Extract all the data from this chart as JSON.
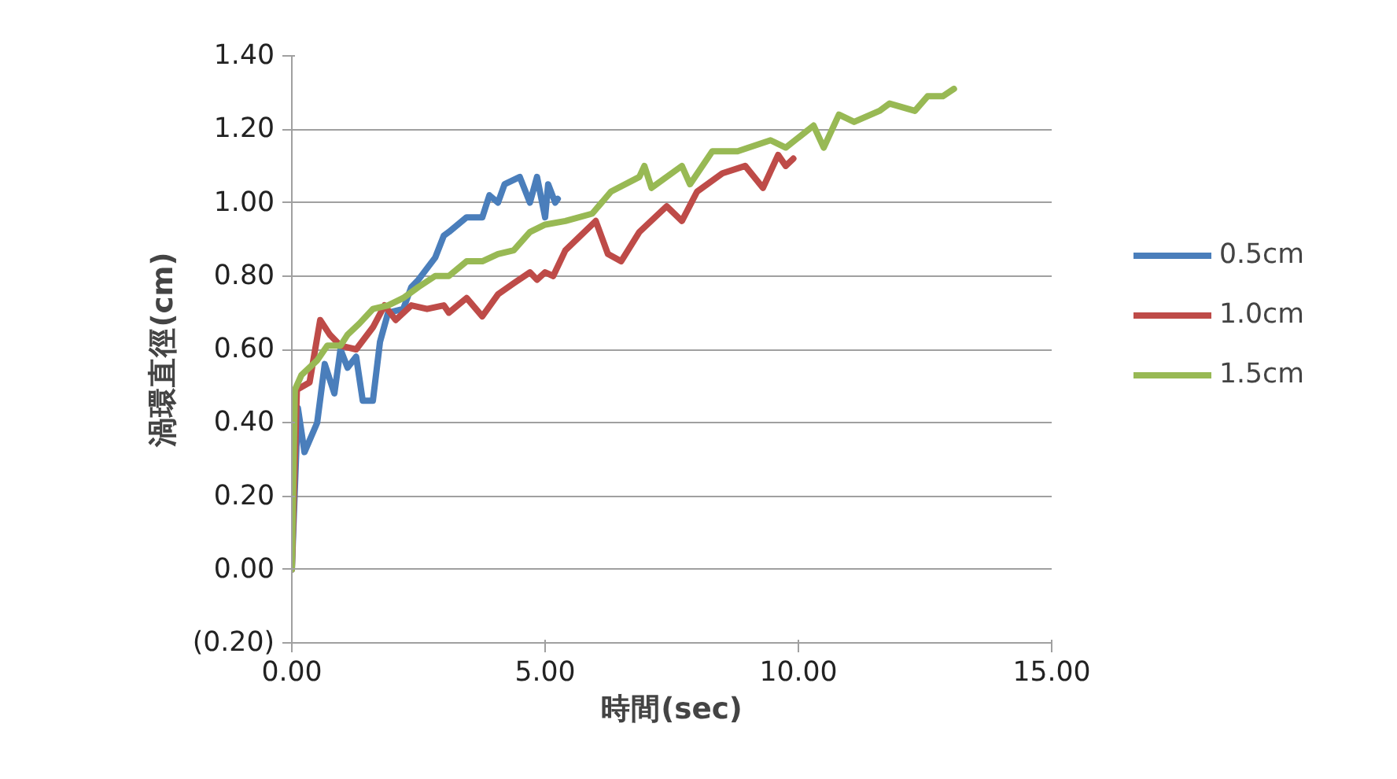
{
  "chart_data": {
    "type": "line",
    "xlabel": "時間(sec)",
    "ylabel": "渦環直徑(cm)",
    "xlim": [
      0,
      15
    ],
    "xticks": [
      {
        "value": 0,
        "label": "0.00"
      },
      {
        "value": 5,
        "label": "5.00"
      },
      {
        "value": 10,
        "label": "10.00"
      },
      {
        "value": 15,
        "label": "15.00"
      }
    ],
    "ylim": [
      -0.2,
      1.4
    ],
    "yticks": [
      {
        "value": -0.2,
        "label": "(0.20)"
      },
      {
        "value": 0,
        "label": "0.00"
      },
      {
        "value": 0.2,
        "label": "0.20"
      },
      {
        "value": 0.4,
        "label": "0.40"
      },
      {
        "value": 0.6,
        "label": "0.60"
      },
      {
        "value": 0.8,
        "label": "0.80"
      },
      {
        "value": 1.0,
        "label": "1.00"
      },
      {
        "value": 1.2,
        "label": "1.20"
      },
      {
        "value": 1.4,
        "label": "1.40"
      }
    ],
    "grid": "y",
    "legend": "right",
    "marker": "none",
    "line_style": "solid",
    "series": [
      {
        "name": "0.5cm",
        "color": "#4a7ebb",
        "x": [
          0,
          0.12,
          0.25,
          0.5,
          0.65,
          0.84,
          0.96,
          1.1,
          1.27,
          1.4,
          1.6,
          1.74,
          1.9,
          2.2,
          2.36,
          2.5,
          2.83,
          3.0,
          3.1,
          3.45,
          3.76,
          3.9,
          4.07,
          4.2,
          4.5,
          4.7,
          4.84,
          5.0,
          5.06,
          5.2,
          5.25
        ],
        "values": [
          0,
          0.44,
          0.32,
          0.4,
          0.56,
          0.48,
          0.6,
          0.55,
          0.58,
          0.46,
          0.46,
          0.62,
          0.7,
          0.71,
          0.77,
          0.79,
          0.85,
          0.91,
          0.92,
          0.96,
          0.96,
          1.02,
          1.0,
          1.05,
          1.07,
          1.0,
          1.07,
          0.96,
          1.05,
          1.0,
          1.01
        ]
      },
      {
        "name": "1.0cm",
        "color": "#be4b48",
        "x": [
          0,
          0.1,
          0.35,
          0.56,
          0.75,
          0.96,
          1.27,
          1.6,
          1.83,
          2.05,
          2.36,
          2.67,
          3.0,
          3.1,
          3.45,
          3.76,
          4.07,
          4.38,
          4.7,
          4.84,
          5.0,
          5.16,
          5.4,
          6.0,
          6.24,
          6.5,
          6.86,
          7.4,
          7.7,
          8.0,
          8.5,
          8.95,
          9.3,
          9.6,
          9.75,
          9.9
        ],
        "values": [
          0,
          0.49,
          0.51,
          0.68,
          0.64,
          0.61,
          0.6,
          0.66,
          0.72,
          0.68,
          0.72,
          0.71,
          0.72,
          0.7,
          0.74,
          0.69,
          0.75,
          0.78,
          0.81,
          0.79,
          0.81,
          0.8,
          0.87,
          0.95,
          0.86,
          0.84,
          0.92,
          0.99,
          0.95,
          1.03,
          1.08,
          1.1,
          1.04,
          1.13,
          1.1,
          1.12
        ]
      },
      {
        "name": "1.5cm",
        "color": "#98b954",
        "x": [
          0,
          0.06,
          0.19,
          0.5,
          0.7,
          0.96,
          1.1,
          1.33,
          1.6,
          1.9,
          2.2,
          2.5,
          2.83,
          3.1,
          3.45,
          3.76,
          4.07,
          4.38,
          4.7,
          5.0,
          5.4,
          5.93,
          6.3,
          6.86,
          6.96,
          7.1,
          7.7,
          7.86,
          8.3,
          8.8,
          9.45,
          9.75,
          10.3,
          10.5,
          10.8,
          11.1,
          11.6,
          11.8,
          12.3,
          12.55,
          12.85,
          13.07
        ],
        "values": [
          0,
          0.49,
          0.53,
          0.57,
          0.61,
          0.61,
          0.64,
          0.67,
          0.71,
          0.72,
          0.74,
          0.77,
          0.8,
          0.8,
          0.84,
          0.84,
          0.86,
          0.87,
          0.92,
          0.94,
          0.95,
          0.97,
          1.03,
          1.07,
          1.1,
          1.04,
          1.1,
          1.05,
          1.14,
          1.14,
          1.17,
          1.15,
          1.21,
          1.15,
          1.24,
          1.22,
          1.25,
          1.27,
          1.25,
          1.29,
          1.29,
          1.31
        ]
      }
    ]
  }
}
